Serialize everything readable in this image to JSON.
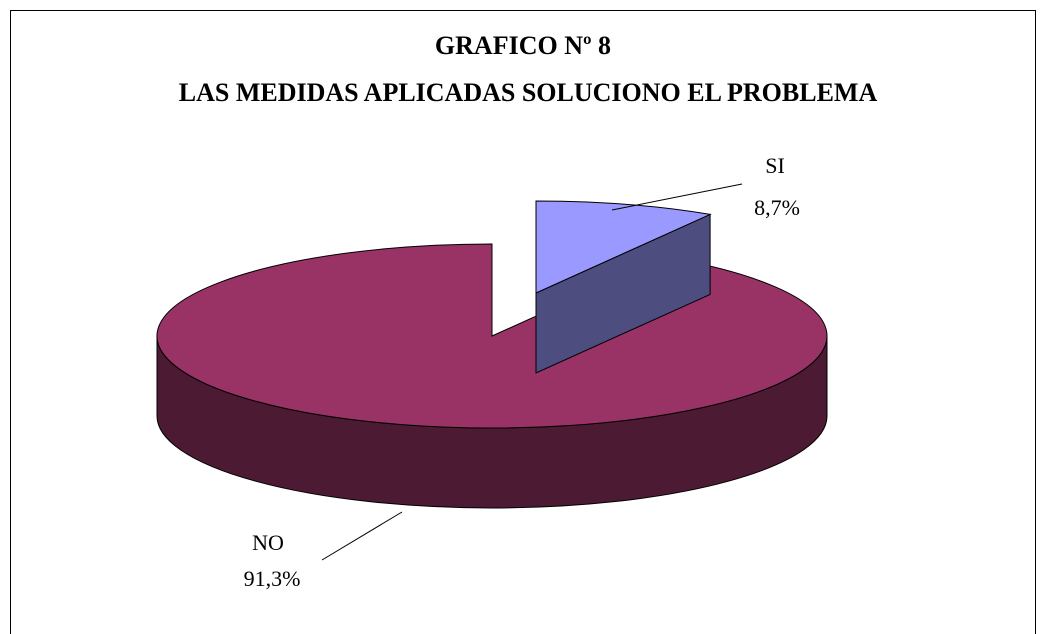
{
  "chart_data": {
    "type": "pie3d",
    "title": "GRAFICO Nº 8",
    "subtitle": "LAS MEDIDAS APLICADAS SOLUCIONO EL PROBLEMA",
    "categories": [
      "SI",
      "NO"
    ],
    "values": [
      8.7,
      91.3
    ],
    "value_labels": [
      "8,7%",
      "91,3%"
    ],
    "colors": [
      "#9999ff",
      "#993366"
    ]
  }
}
